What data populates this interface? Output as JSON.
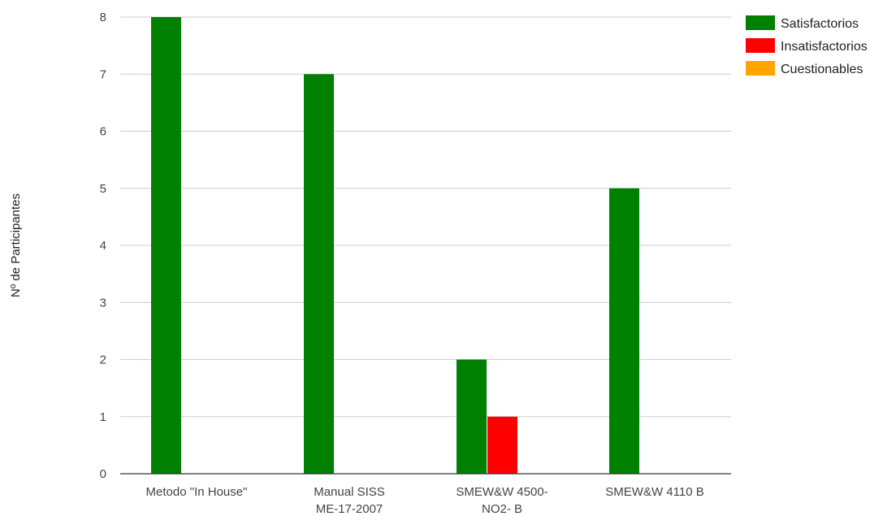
{
  "chart_data": {
    "type": "bar",
    "ylabel": "Nº de Participantes",
    "xlabel": "",
    "ylim": [
      0,
      8
    ],
    "yticks": [
      0,
      1,
      2,
      3,
      4,
      5,
      6,
      7,
      8
    ],
    "grid": true,
    "legend_position": "top-right",
    "categories": [
      [
        "Metodo \"In House\""
      ],
      [
        "Manual SISS",
        "ME-17-2007"
      ],
      [
        "SMEW&W 4500-",
        "NO2- B"
      ],
      [
        "SMEW&W 4110 B"
      ]
    ],
    "series": [
      {
        "name": "Satisfactorios",
        "color": "#008000",
        "values": [
          8,
          7,
          2,
          5
        ]
      },
      {
        "name": "Insatisfactorios",
        "color": "#ff0000",
        "values": [
          0,
          0,
          1,
          0
        ]
      },
      {
        "name": "Cuestionables",
        "color": "#ffa500",
        "values": [
          0,
          0,
          0,
          0
        ]
      }
    ]
  }
}
